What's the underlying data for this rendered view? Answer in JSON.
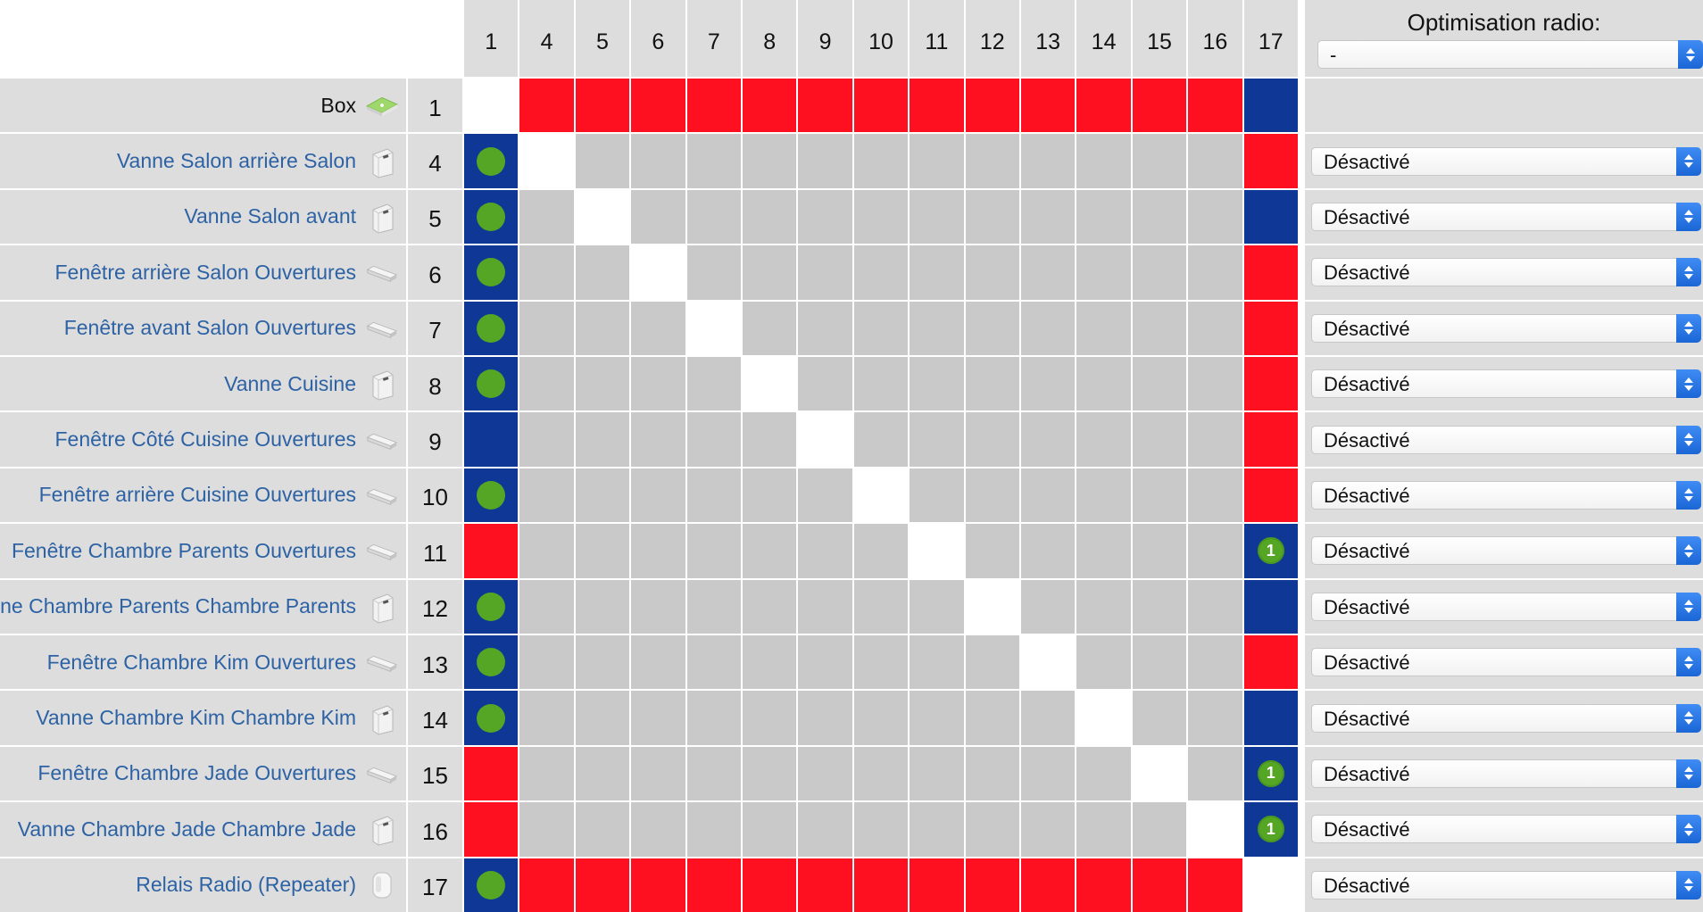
{
  "optimisation": {
    "title": "Optimisation radio:",
    "value": "-"
  },
  "columns": [
    "1",
    "4",
    "5",
    "6",
    "7",
    "8",
    "9",
    "10",
    "11",
    "12",
    "13",
    "14",
    "15",
    "16",
    "17"
  ],
  "colors": {
    "red": "#ff1020",
    "blue": "#0e3796",
    "grey": "#c9c9c9",
    "white": "#ffffff",
    "green": "#55a624",
    "link": "#2d62a4"
  },
  "rows": [
    {
      "name": "Box",
      "id": "1",
      "icon": "box-icon",
      "link": false,
      "select": null,
      "cells": [
        "w",
        "r",
        "r",
        "r",
        "r",
        "r",
        "r",
        "r",
        "r",
        "r",
        "r",
        "r",
        "r",
        "r",
        "b"
      ],
      "marks": {}
    },
    {
      "name": "Vanne Salon arrière Salon",
      "id": "4",
      "icon": "valve-icon",
      "link": true,
      "select": "Désactivé",
      "cells": [
        "b",
        "w",
        "g",
        "g",
        "g",
        "g",
        "g",
        "g",
        "g",
        "g",
        "g",
        "g",
        "g",
        "g",
        "r"
      ],
      "marks": {
        "0": "dot"
      }
    },
    {
      "name": "Vanne Salon avant",
      "id": "5",
      "icon": "valve-icon",
      "link": true,
      "select": "Désactivé",
      "cells": [
        "b",
        "g",
        "w",
        "g",
        "g",
        "g",
        "g",
        "g",
        "g",
        "g",
        "g",
        "g",
        "g",
        "g",
        "b"
      ],
      "marks": {
        "0": "dot"
      }
    },
    {
      "name": "Fenêtre arrière Salon Ouvertures",
      "id": "6",
      "icon": "window-sensor-icon",
      "link": true,
      "select": "Désactivé",
      "cells": [
        "b",
        "g",
        "g",
        "w",
        "g",
        "g",
        "g",
        "g",
        "g",
        "g",
        "g",
        "g",
        "g",
        "g",
        "r"
      ],
      "marks": {
        "0": "dot"
      }
    },
    {
      "name": "Fenêtre avant Salon Ouvertures",
      "id": "7",
      "icon": "window-sensor-icon",
      "link": true,
      "select": "Désactivé",
      "cells": [
        "b",
        "g",
        "g",
        "g",
        "w",
        "g",
        "g",
        "g",
        "g",
        "g",
        "g",
        "g",
        "g",
        "g",
        "r"
      ],
      "marks": {
        "0": "dot"
      }
    },
    {
      "name": "Vanne Cuisine",
      "id": "8",
      "icon": "valve-icon",
      "link": true,
      "select": "Désactivé",
      "cells": [
        "b",
        "g",
        "g",
        "g",
        "g",
        "w",
        "g",
        "g",
        "g",
        "g",
        "g",
        "g",
        "g",
        "g",
        "r"
      ],
      "marks": {
        "0": "dot"
      }
    },
    {
      "name": "Fenêtre Côté Cuisine Ouvertures",
      "id": "9",
      "icon": "window-sensor-icon",
      "link": true,
      "select": "Désactivé",
      "cells": [
        "b",
        "g",
        "g",
        "g",
        "g",
        "g",
        "w",
        "g",
        "g",
        "g",
        "g",
        "g",
        "g",
        "g",
        "r"
      ],
      "marks": {}
    },
    {
      "name": "Fenêtre arrière Cuisine Ouvertures",
      "id": "10",
      "icon": "window-sensor-icon",
      "link": true,
      "select": "Désactivé",
      "cells": [
        "b",
        "g",
        "g",
        "g",
        "g",
        "g",
        "g",
        "w",
        "g",
        "g",
        "g",
        "g",
        "g",
        "g",
        "r"
      ],
      "marks": {
        "0": "dot"
      }
    },
    {
      "name": "Fenêtre Chambre Parents Ouvertures",
      "id": "11",
      "icon": "window-sensor-icon",
      "link": true,
      "select": "Désactivé",
      "cells": [
        "r",
        "g",
        "g",
        "g",
        "g",
        "g",
        "g",
        "g",
        "w",
        "g",
        "g",
        "g",
        "g",
        "g",
        "b"
      ],
      "marks": {
        "14": "1"
      }
    },
    {
      "name": "Vanne Chambre Parents Chambre Parents",
      "id": "12",
      "icon": "valve-icon",
      "link": true,
      "select": "Désactivé",
      "cells": [
        "b",
        "g",
        "g",
        "g",
        "g",
        "g",
        "g",
        "g",
        "g",
        "w",
        "g",
        "g",
        "g",
        "g",
        "b"
      ],
      "marks": {
        "0": "dot"
      }
    },
    {
      "name": "Fenêtre Chambre Kim Ouvertures",
      "id": "13",
      "icon": "window-sensor-icon",
      "link": true,
      "select": "Désactivé",
      "cells": [
        "b",
        "g",
        "g",
        "g",
        "g",
        "g",
        "g",
        "g",
        "g",
        "g",
        "w",
        "g",
        "g",
        "g",
        "r"
      ],
      "marks": {
        "0": "dot"
      }
    },
    {
      "name": "Vanne Chambre Kim Chambre Kim",
      "id": "14",
      "icon": "valve-icon",
      "link": true,
      "select": "Désactivé",
      "cells": [
        "b",
        "g",
        "g",
        "g",
        "g",
        "g",
        "g",
        "g",
        "g",
        "g",
        "g",
        "w",
        "g",
        "g",
        "b"
      ],
      "marks": {
        "0": "dot"
      }
    },
    {
      "name": "Fenêtre Chambre Jade Ouvertures",
      "id": "15",
      "icon": "window-sensor-icon",
      "link": true,
      "select": "Désactivé",
      "cells": [
        "r",
        "g",
        "g",
        "g",
        "g",
        "g",
        "g",
        "g",
        "g",
        "g",
        "g",
        "g",
        "w",
        "g",
        "b"
      ],
      "marks": {
        "14": "1"
      }
    },
    {
      "name": "Vanne Chambre Jade Chambre Jade",
      "id": "16",
      "icon": "valve-icon",
      "link": true,
      "select": "Désactivé",
      "cells": [
        "r",
        "g",
        "g",
        "g",
        "g",
        "g",
        "g",
        "g",
        "g",
        "g",
        "g",
        "g",
        "g",
        "w",
        "b"
      ],
      "marks": {
        "14": "1"
      }
    },
    {
      "name": "Relais Radio (Repeater)",
      "id": "17",
      "icon": "repeater-icon",
      "link": true,
      "select": "Désactivé",
      "cells": [
        "b",
        "r",
        "r",
        "r",
        "r",
        "r",
        "r",
        "r",
        "r",
        "r",
        "r",
        "r",
        "r",
        "r",
        "w"
      ],
      "marks": {
        "0": "dot"
      }
    }
  ]
}
